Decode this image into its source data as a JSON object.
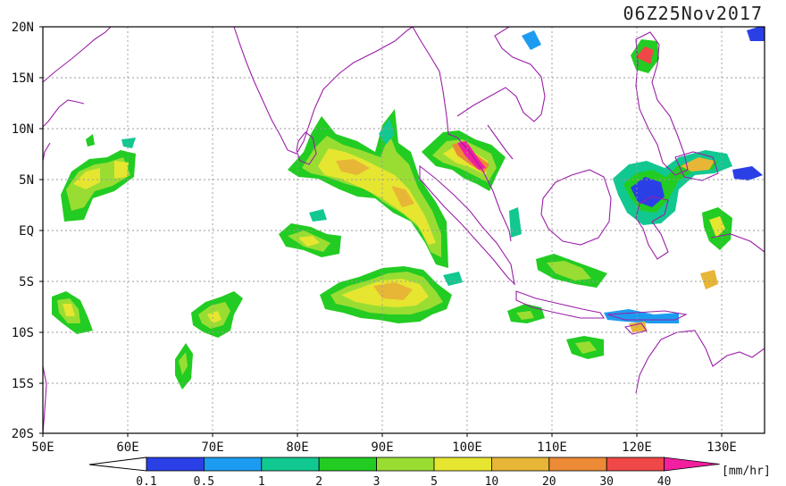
{
  "map": {
    "timestamp": "06Z25Nov2017",
    "lat_labels": [
      "20N",
      "15N",
      "10N",
      "5N",
      "EQ",
      "5S",
      "10S",
      "15S",
      "20S"
    ],
    "lon_labels": [
      "50E",
      "60E",
      "70E",
      "80E",
      "90E",
      "100E",
      "110E",
      "120E",
      "130E"
    ],
    "colors": {
      "coastline": "#9b1fa8",
      "frame": "#000000",
      "grid": "#9a9a9a"
    }
  },
  "legend": {
    "unit": "[mm/hr]",
    "tick_labels": [
      "0.1",
      "0.5",
      "1",
      "2",
      "3",
      "5",
      "10",
      "20",
      "30",
      "40"
    ],
    "colors": [
      "#2a3fe6",
      "#1c9cf0",
      "#11c890",
      "#22cc22",
      "#99dd33",
      "#e6e630",
      "#e8b636",
      "#ec8a36",
      "#f04848",
      "#f21f9e"
    ]
  }
}
